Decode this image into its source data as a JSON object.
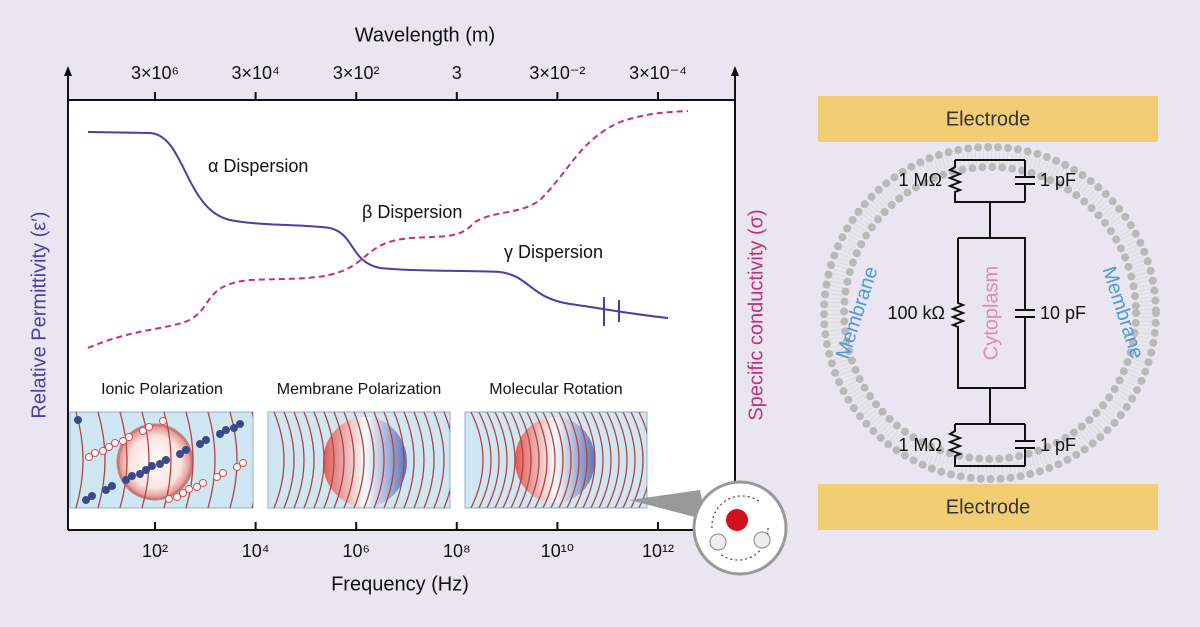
{
  "figure": {
    "wavelength_axis": {
      "title": "Wavelength (m)",
      "ticks": [
        "3×10⁶",
        "3×10⁴",
        "3×10²",
        "3",
        "3×10⁻²",
        "3×10⁻⁴"
      ]
    },
    "frequency_axis": {
      "title": "Frequency (Hz)",
      "ticks": [
        "10²",
        "10⁴",
        "10⁶",
        "10⁸",
        "10¹⁰",
        "10¹²"
      ]
    },
    "left_axis_title": "Relative Permittivity (ε′)",
    "right_axis_title": "Specific conductivity (σ)",
    "annotations": [
      "α Dispersion",
      "β Dispersion",
      "γ Dispersion"
    ],
    "panels": [
      "Ionic Polarization",
      "Membrane Polarization",
      "Molecular Rotation"
    ]
  },
  "circuit": {
    "electrodes": [
      "Electrode",
      "Electrode"
    ],
    "membrane_labels": [
      "Membrane",
      "Membrane"
    ],
    "cytoplasm": "Cytoplasm",
    "components": [
      "1 MΩ",
      "1 pF",
      "100 kΩ",
      "10 pF",
      "1 MΩ",
      "1 pF"
    ]
  }
}
